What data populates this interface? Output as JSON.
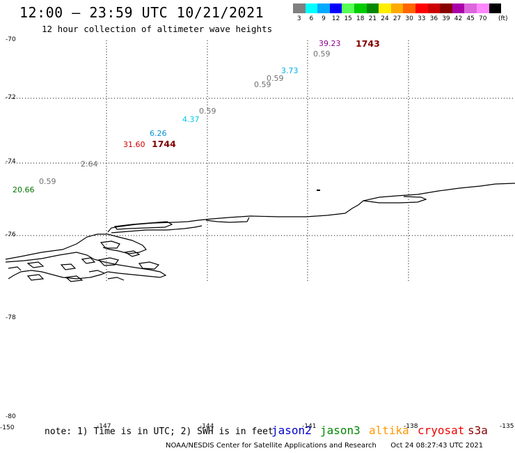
{
  "header": {
    "title": "12:00 — 23:59 UTC 10/21/2021",
    "subtitle": "12 hour collection of altimeter wave heights"
  },
  "legend": {
    "unit": "(ft)",
    "items": [
      {
        "label": "3",
        "color": "#808080"
      },
      {
        "label": "6",
        "color": "#00ffff"
      },
      {
        "label": "9",
        "color": "#00aaff"
      },
      {
        "label": "12",
        "color": "#0000ff"
      },
      {
        "label": "15",
        "color": "#55ff55"
      },
      {
        "label": "18",
        "color": "#00cc00"
      },
      {
        "label": "21",
        "color": "#008800"
      },
      {
        "label": "24",
        "color": "#ffee00"
      },
      {
        "label": "27",
        "color": "#ffaa00"
      },
      {
        "label": "30",
        "color": "#ff6600"
      },
      {
        "label": "33",
        "color": "#ff0000"
      },
      {
        "label": "36",
        "color": "#cc0000"
      },
      {
        "label": "39",
        "color": "#880000"
      },
      {
        "label": "42",
        "color": "#aa00aa"
      },
      {
        "label": "45",
        "color": "#dd66dd"
      },
      {
        "label": "70",
        "color": "#ff88ff"
      },
      {
        "label": "",
        "color": "#000000"
      }
    ]
  },
  "latitude_labels": [
    "-70",
    "-72",
    "-74",
    "-76",
    "-78",
    "-80"
  ],
  "longitude_labels": [
    "-150",
    "-147",
    "-144",
    "-141",
    "-138",
    "-135"
  ],
  "wave_heights": [
    {
      "value": "39.23",
      "color": "#8b008b"
    },
    {
      "value": "0.59",
      "color": "#707070"
    },
    {
      "value": "3.73",
      "color": "#00b0e0"
    },
    {
      "value": "0.59",
      "color": "#707070"
    },
    {
      "value": "0.59",
      "color": "#707070"
    },
    {
      "value": "0.59",
      "color": "#707070"
    },
    {
      "value": "4.37",
      "color": "#00c8e8"
    },
    {
      "value": "6.26",
      "color": "#0090d0"
    },
    {
      "value": "31.60",
      "color": "#cc0000"
    },
    {
      "value": "2.64",
      "color": "#707070"
    },
    {
      "value": "0.59",
      "color": "#707070"
    },
    {
      "value": "20.66",
      "color": "#007700"
    }
  ],
  "time_stamps": [
    {
      "value": "1743",
      "color": "#800000"
    },
    {
      "value": "1744",
      "color": "#800000"
    }
  ],
  "note": "note: 1) Time is in UTC; 2) SWH is in feet",
  "satellites": [
    {
      "name": "jason2",
      "color": "#0000cc"
    },
    {
      "name": "jason3",
      "color": "#008800"
    },
    {
      "name": "altika",
      "color": "#ff9900"
    },
    {
      "name": "cryosat",
      "color": "#ee0000"
    },
    {
      "name": "s3a",
      "color": "#880000"
    }
  ],
  "footer": {
    "agency": "NOAA/NESDIS Center for Satellite Applications and Research",
    "generated": "Oct 24 08:27:43 UTC 2021"
  }
}
